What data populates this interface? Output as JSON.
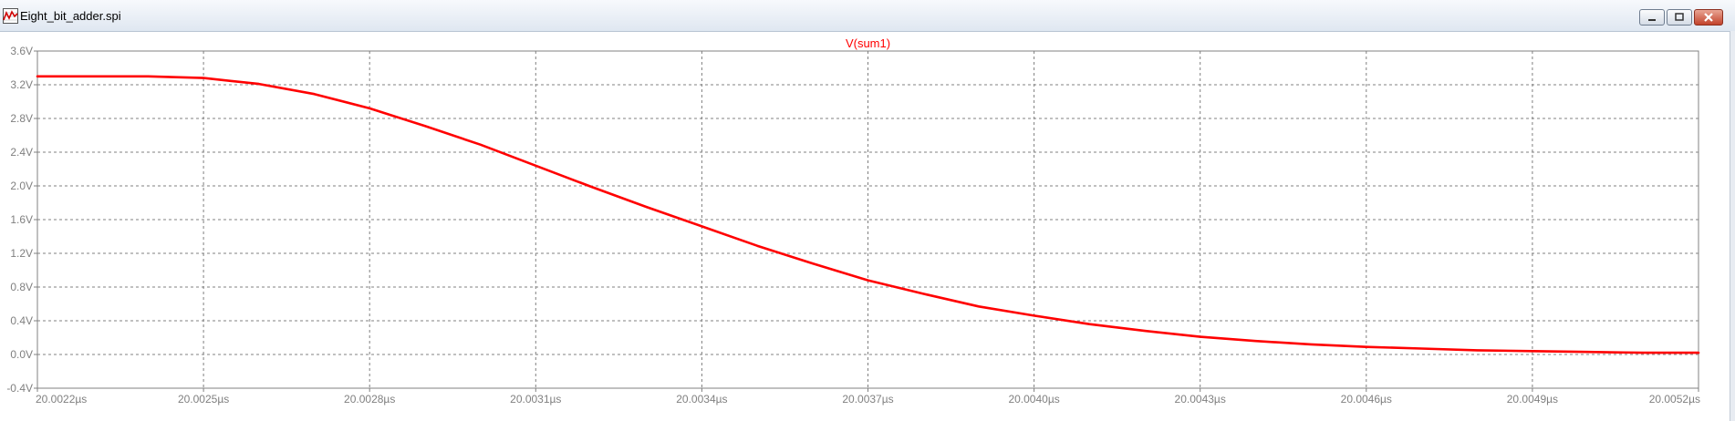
{
  "window": {
    "title": "Eight_bit_adder.spi",
    "controls": {
      "minimize": "minimize-icon",
      "restore": "restore-icon",
      "close": "close-icon"
    }
  },
  "chart_data": {
    "type": "line",
    "title": "",
    "xlabel": "",
    "ylabel": "",
    "series": [
      {
        "name": "V(sum1)",
        "color": "#ff0000",
        "x": [
          20.0022,
          20.0023,
          20.0024,
          20.0025,
          20.0026,
          20.0027,
          20.0028,
          20.0029,
          20.003,
          20.0031,
          20.0032,
          20.0033,
          20.0034,
          20.0035,
          20.0036,
          20.0037,
          20.0038,
          20.0039,
          20.004,
          20.0041,
          20.0042,
          20.0043,
          20.0044,
          20.0045,
          20.0046,
          20.0047,
          20.0048,
          20.0049,
          20.005,
          20.0051,
          20.0052
        ],
        "y": [
          3.3,
          3.3,
          3.3,
          3.28,
          3.21,
          3.09,
          2.92,
          2.71,
          2.49,
          2.24,
          1.99,
          1.75,
          1.52,
          1.29,
          1.08,
          0.88,
          0.72,
          0.57,
          0.46,
          0.36,
          0.28,
          0.21,
          0.16,
          0.12,
          0.09,
          0.07,
          0.05,
          0.04,
          0.03,
          0.02,
          0.02
        ]
      }
    ],
    "xlim": [
      20.0022,
      20.0052
    ],
    "ylim": [
      -0.4,
      3.6
    ],
    "x_ticks": [
      "20.0022µs",
      "20.0025µs",
      "20.0028µs",
      "20.0031µs",
      "20.0034µs",
      "20.0037µs",
      "20.0040µs",
      "20.0043µs",
      "20.0046µs",
      "20.0049µs",
      "20.0052µs"
    ],
    "x_tick_values": [
      20.0022,
      20.0025,
      20.0028,
      20.0031,
      20.0034,
      20.0037,
      20.004,
      20.0043,
      20.0046,
      20.0049,
      20.0052
    ],
    "y_ticks": [
      "3.6V",
      "3.2V",
      "2.8V",
      "2.4V",
      "2.0V",
      "1.6V",
      "1.2V",
      "0.8V",
      "0.4V",
      "0.0V",
      "-0.4V"
    ],
    "y_tick_values": [
      3.6,
      3.2,
      2.8,
      2.4,
      2.0,
      1.6,
      1.2,
      0.8,
      0.4,
      0.0,
      -0.4
    ],
    "grid": true,
    "legend": "top-center",
    "colors": {
      "axis_text": "#808080",
      "grid": "#808080",
      "trace": "#ff0000"
    }
  }
}
